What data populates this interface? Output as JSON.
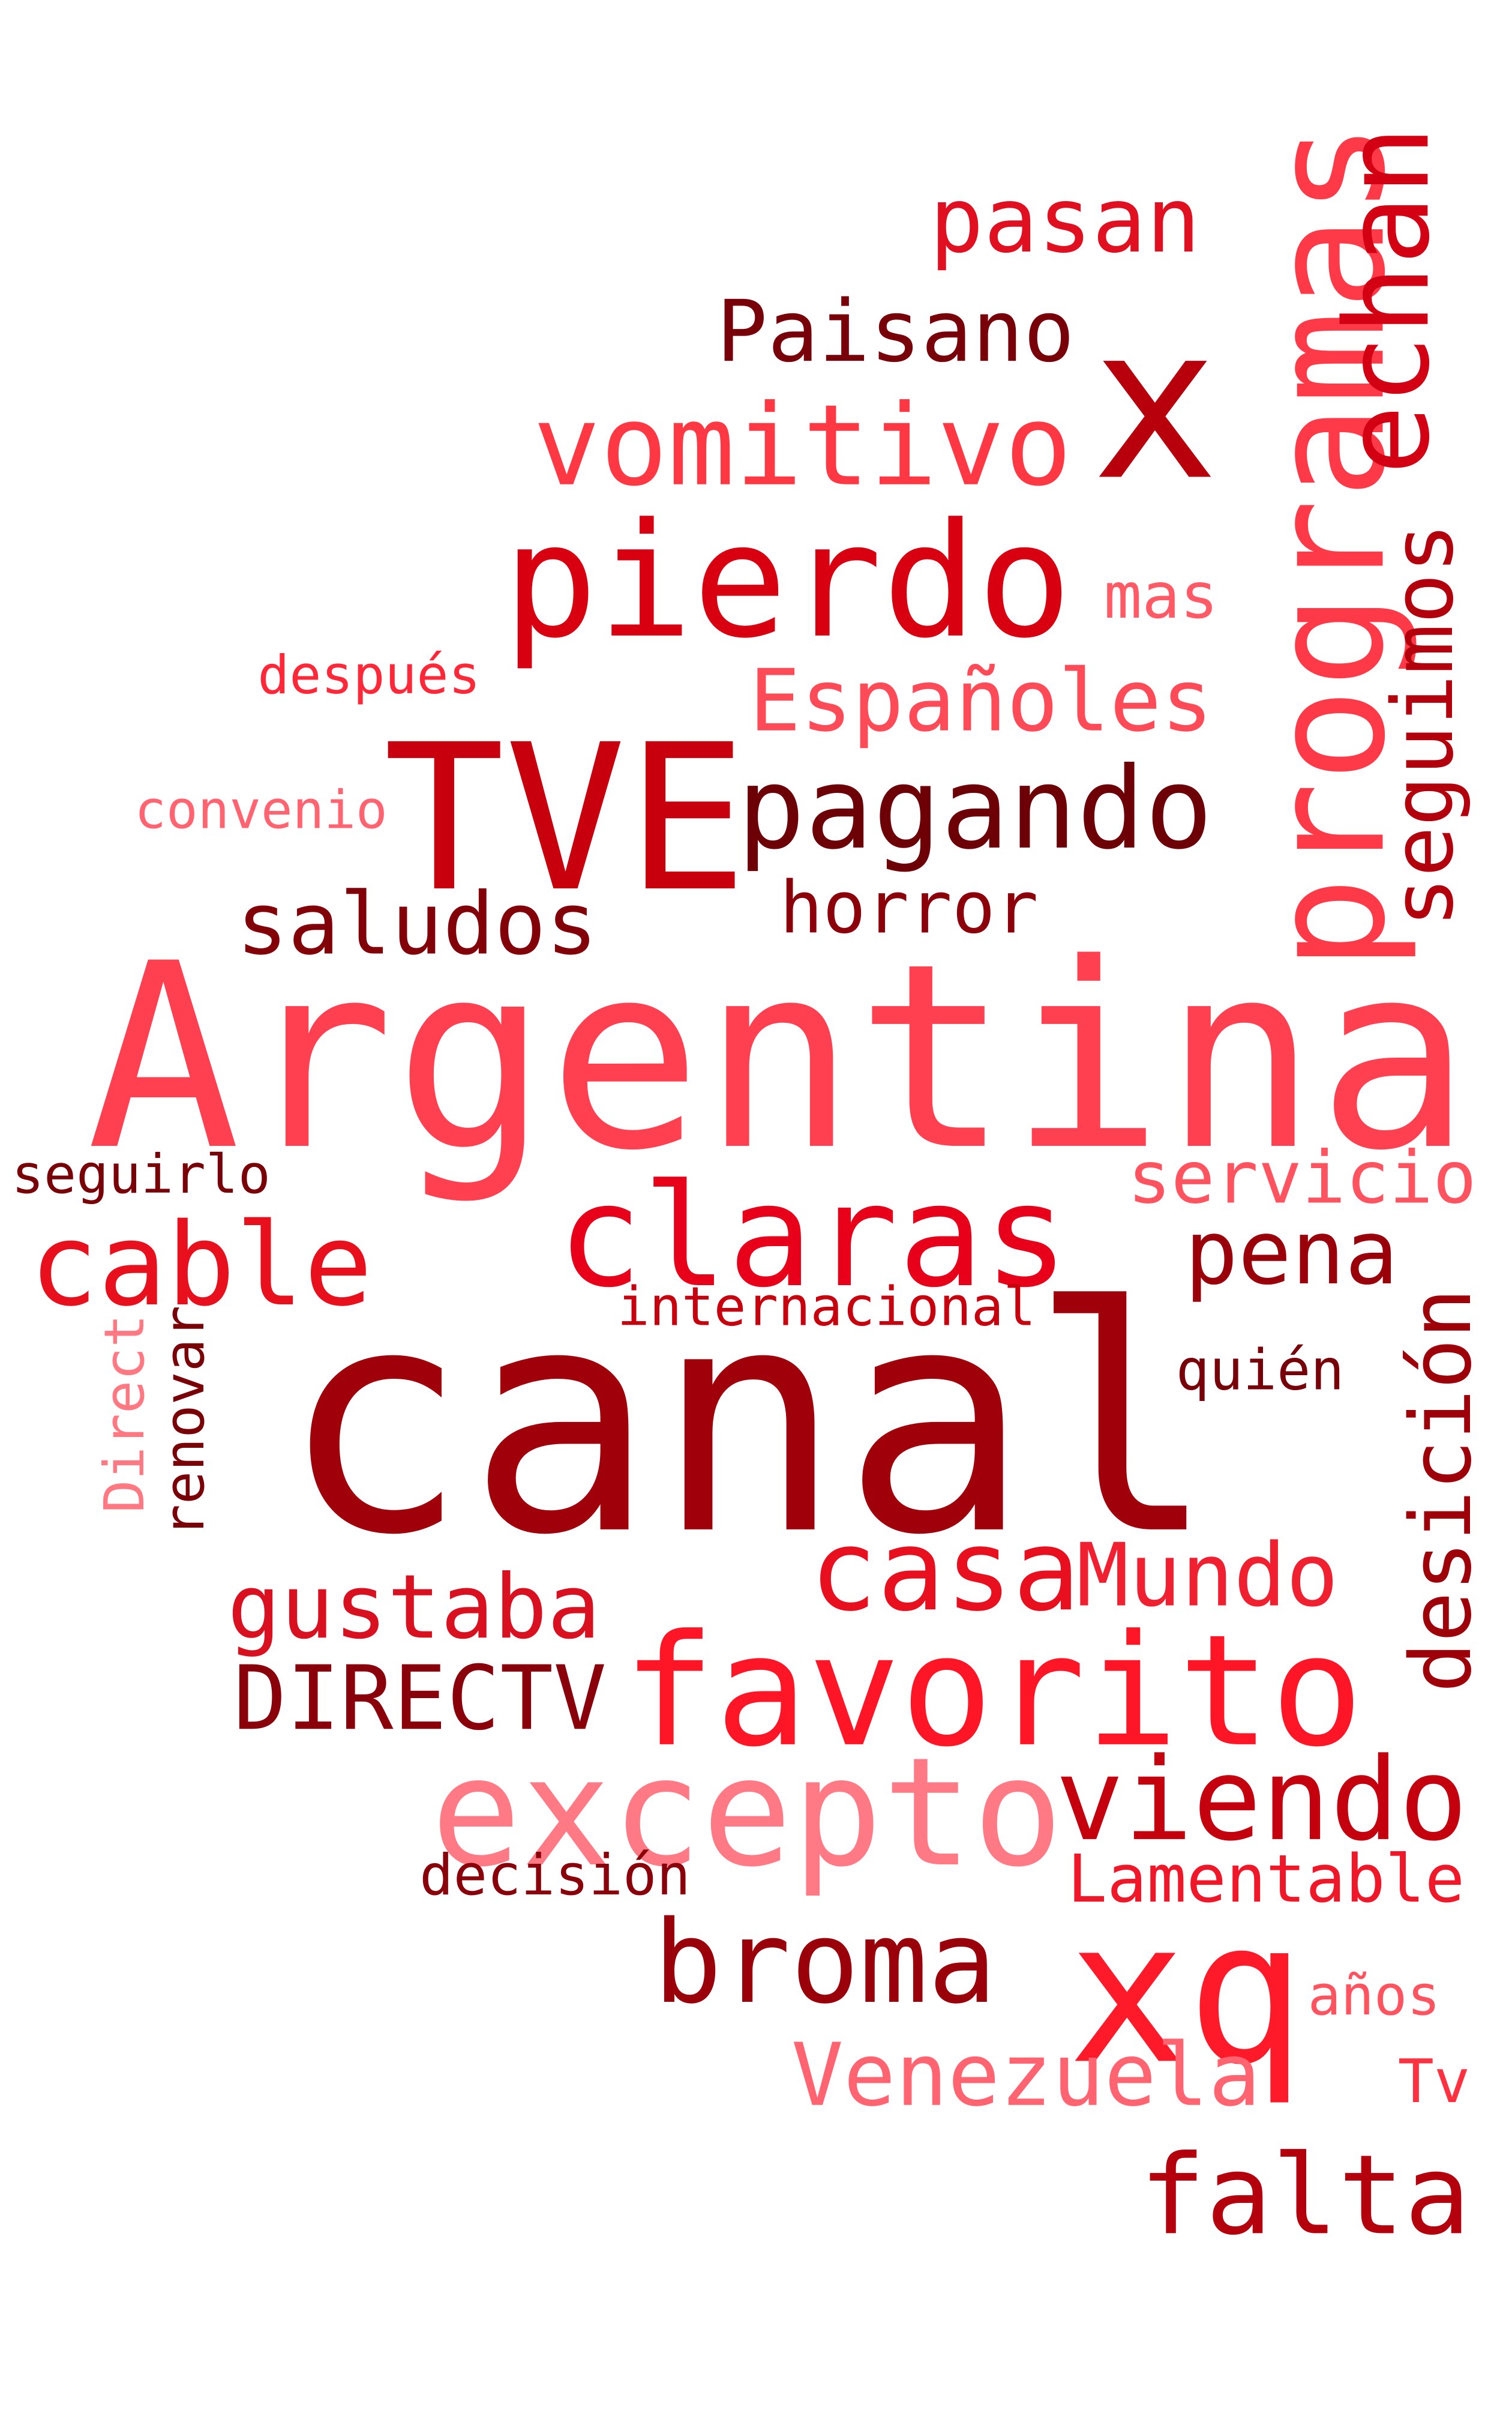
{
  "words": [
    {
      "text": "Argentina",
      "color": "#ff4050",
      "vertical": false
    },
    {
      "text": "canal",
      "color": "#a0000a",
      "vertical": false
    },
    {
      "text": "TVE",
      "color": "#c8000e",
      "vertical": false
    },
    {
      "text": "programas",
      "color": "#ff3a48",
      "vertical": true
    },
    {
      "text": "x",
      "color": "#b8000c",
      "vertical": false
    },
    {
      "text": "echan",
      "color": "#d20012",
      "vertical": true
    },
    {
      "text": "pasan",
      "color": "#e01020",
      "vertical": false
    },
    {
      "text": "Paisano",
      "color": "#780008",
      "vertical": false
    },
    {
      "text": "vomitivo",
      "color": "#ff3844",
      "vertical": false
    },
    {
      "text": "pierdo",
      "color": "#d80010",
      "vertical": false
    },
    {
      "text": "mas",
      "color": "#ff5a66",
      "vertical": false
    },
    {
      "text": "seguimos",
      "color": "#b2000c",
      "vertical": true
    },
    {
      "text": "después",
      "color": "#ff2838",
      "vertical": false
    },
    {
      "text": "Españoles",
      "color": "#ff4a58",
      "vertical": false
    },
    {
      "text": "pagando",
      "color": "#6c0006",
      "vertical": false
    },
    {
      "text": "convenio",
      "color": "#ff6470",
      "vertical": false
    },
    {
      "text": "saludos",
      "color": "#820008",
      "vertical": false
    },
    {
      "text": "horror",
      "color": "#8c000a",
      "vertical": false
    },
    {
      "text": "seguirlo",
      "color": "#7a0008",
      "vertical": false
    },
    {
      "text": "servicio",
      "color": "#ff5460",
      "vertical": false
    },
    {
      "text": "claras",
      "color": "#e8001a",
      "vertical": false
    },
    {
      "text": "cable",
      "color": "#e8101c",
      "vertical": false
    },
    {
      "text": "pena",
      "color": "#9a000a",
      "vertical": false
    },
    {
      "text": "internacional",
      "color": "#c8000e",
      "vertical": false
    },
    {
      "text": "Direct",
      "color": "#ff7882",
      "vertical": true
    },
    {
      "text": "renovar",
      "color": "#7a0008",
      "vertical": true
    },
    {
      "text": "quién",
      "color": "#780008",
      "vertical": false
    },
    {
      "text": "desición",
      "color": "#9e000a",
      "vertical": true
    },
    {
      "text": "casa",
      "color": "#e8101e",
      "vertical": false
    },
    {
      "text": "Mundo",
      "color": "#f02030",
      "vertical": false
    },
    {
      "text": "gustaba",
      "color": "#d81020",
      "vertical": false
    },
    {
      "text": "DIRECTV",
      "color": "#8a000a",
      "vertical": false
    },
    {
      "text": "favorito",
      "color": "#ff1626",
      "vertical": false
    },
    {
      "text": "excepto",
      "color": "#ff7a84",
      "vertical": false
    },
    {
      "text": "viendo",
      "color": "#c4000e",
      "vertical": false
    },
    {
      "text": "decisión",
      "color": "#8a000a",
      "vertical": false
    },
    {
      "text": "Lamentable",
      "color": "#f01828",
      "vertical": false
    },
    {
      "text": "broma",
      "color": "#9a000a",
      "vertical": false
    },
    {
      "text": "xq",
      "color": "#ff1a2a",
      "vertical": false
    },
    {
      "text": "años",
      "color": "#ff5460",
      "vertical": false
    },
    {
      "text": "Venezuela",
      "color": "#ff6470",
      "vertical": false
    },
    {
      "text": "Tv",
      "color": "#ff3040",
      "vertical": false
    },
    {
      "text": "falta",
      "color": "#b4000c",
      "vertical": false
    }
  ]
}
